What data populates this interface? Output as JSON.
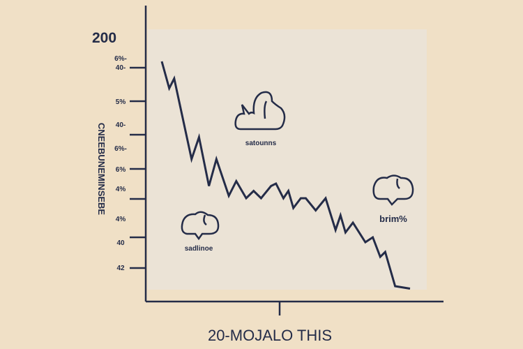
{
  "chart_data": {
    "type": "line",
    "title": "200",
    "xlabel": "20-MOJALO THIS",
    "ylabel": "CNEEBUNEMINSEBE",
    "ytick_labels": [
      "6%-",
      "40-",
      "5%",
      "40-",
      "6%-",
      "6%",
      "4%",
      "4%",
      "40",
      "42"
    ],
    "xlim": [
      0,
      100
    ],
    "ylim": [
      0,
      100
    ],
    "grid": false,
    "series": [
      {
        "name": "series",
        "color": "#242c48",
        "x": [
          0,
          3,
          5,
          12,
          15,
          19,
          22,
          27,
          30,
          34,
          37,
          40,
          44,
          46,
          49,
          51,
          53,
          56,
          58,
          62,
          66,
          70,
          72,
          74,
          77,
          82,
          85,
          88,
          90,
          94,
          100
        ],
        "y": [
          92,
          81,
          85,
          52,
          61,
          41,
          52,
          37,
          43,
          36,
          39,
          36,
          41,
          42,
          36,
          39,
          32,
          36,
          36,
          31,
          36,
          23,
          29,
          22,
          26,
          18,
          20,
          12,
          14,
          0,
          -1
        ]
      }
    ],
    "annotations": [
      {
        "text": "satounns",
        "icon": "cloud-icon"
      },
      {
        "text": "sadlinoe",
        "icon": "speech-cloud-icon"
      },
      {
        "text": "brim%",
        "icon": "speech-cloud-icon"
      }
    ]
  }
}
